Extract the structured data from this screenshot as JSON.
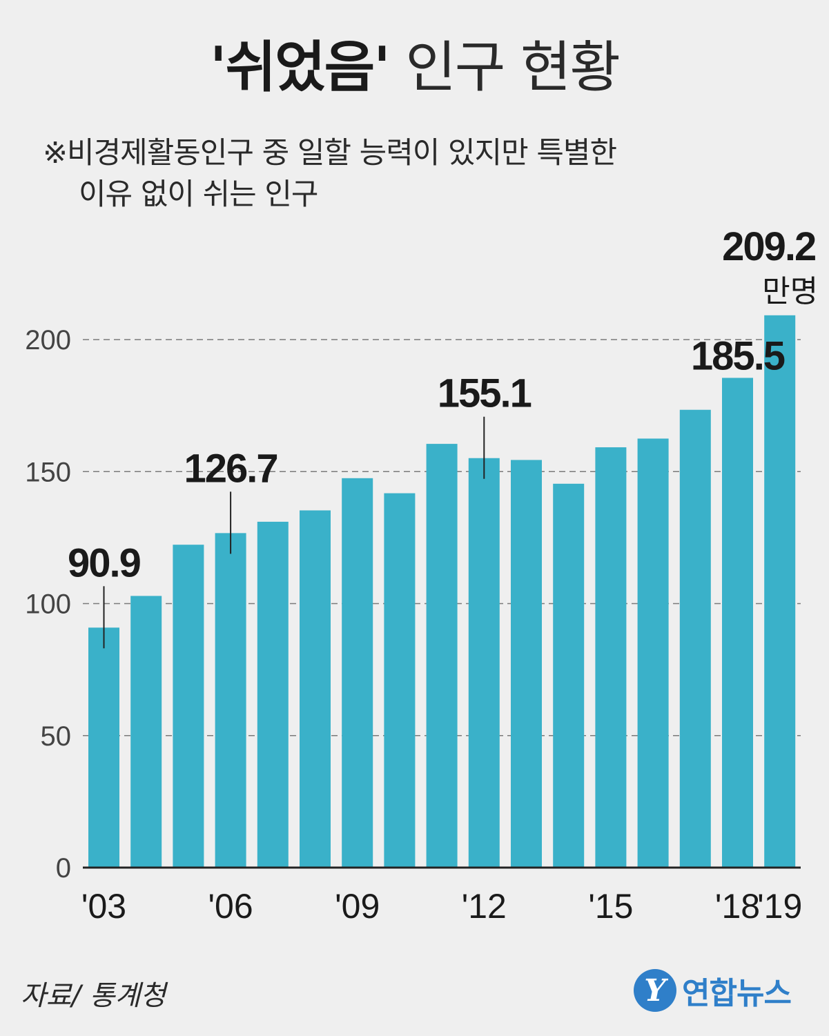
{
  "header": {
    "title_bold": "'쉬었음'",
    "title_rest": "인구 현황",
    "note_line1": "※비경제활동인구 중 일할 능력이 있지만 특별한",
    "note_line2": "이유 없이 쉬는 인구"
  },
  "footer": {
    "source": "자료/ 통계청",
    "logo_text": "연합뉴스",
    "logo_mark": "Y"
  },
  "colors": {
    "bar": "#3ab1c9",
    "grid": "#7a7a7a",
    "axis": "#222222",
    "text": "#1a1a1a"
  },
  "chart_data": {
    "type": "bar",
    "title": "'쉬었음' 인구 현황",
    "unit": "만명",
    "categories": [
      "'03",
      "'04",
      "'05",
      "'06",
      "'07",
      "'08",
      "'09",
      "'10",
      "'11",
      "'12",
      "'13",
      "'14",
      "'15",
      "'16",
      "'17",
      "'18",
      "'19"
    ],
    "values": [
      90.9,
      102.9,
      122.3,
      126.7,
      131.0,
      135.3,
      147.5,
      141.8,
      160.5,
      155.1,
      154.4,
      145.4,
      159.2,
      162.5,
      173.4,
      185.5,
      209.2
    ],
    "x_tick_labels": [
      "'03",
      "'06",
      "'09",
      "'12",
      "'15",
      "'18",
      "'19"
    ],
    "x_tick_indices": [
      0,
      3,
      6,
      9,
      12,
      15,
      16
    ],
    "y_ticks": [
      0,
      50,
      100,
      150,
      200
    ],
    "ylim": [
      0,
      210
    ],
    "annotations": [
      {
        "index": 0,
        "label": "90.9",
        "leader": true
      },
      {
        "index": 3,
        "label": "126.7",
        "leader": true
      },
      {
        "index": 9,
        "label": "155.1",
        "leader": true
      },
      {
        "index": 15,
        "label": "185.5",
        "leader": false
      },
      {
        "index": 16,
        "label": "209.2",
        "unit_label": "만명",
        "leader": false
      }
    ],
    "grid": true,
    "xlabel": "",
    "ylabel": ""
  }
}
